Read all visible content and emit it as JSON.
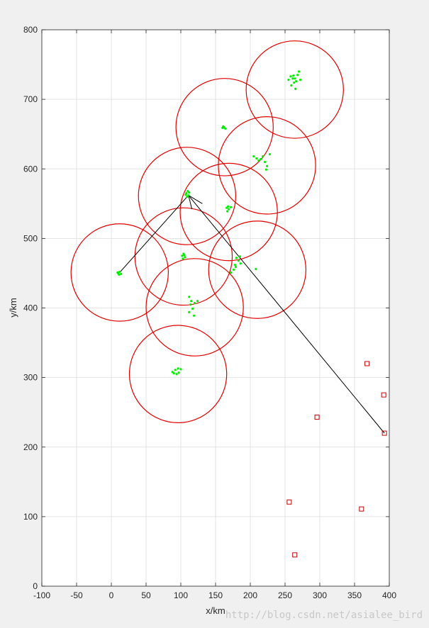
{
  "chart_data": {
    "type": "scatter",
    "title": "",
    "xlabel": "x/km",
    "ylabel": "y/km",
    "xlim": [
      -100,
      400
    ],
    "ylim": [
      0,
      800
    ],
    "xticks": [
      -100,
      -50,
      0,
      50,
      100,
      150,
      200,
      250,
      300,
      350,
      400
    ],
    "yticks": [
      0,
      100,
      200,
      300,
      400,
      500,
      600,
      700,
      800
    ],
    "grid": true,
    "legend": "none",
    "colors": {
      "circle": "#e00000",
      "points": "#00ee00",
      "squares": "#c00000",
      "path": "#000000",
      "grid": "#dcdcdc"
    },
    "circles": [
      {
        "cx": 264,
        "cy": 714,
        "r": 70
      },
      {
        "cx": 163,
        "cy": 660,
        "r": 70
      },
      {
        "cx": 224,
        "cy": 605,
        "r": 70
      },
      {
        "cx": 109,
        "cy": 561,
        "r": 70
      },
      {
        "cx": 169,
        "cy": 538,
        "r": 70
      },
      {
        "cx": 12,
        "cy": 451,
        "r": 70
      },
      {
        "cx": 104,
        "cy": 474,
        "r": 70
      },
      {
        "cx": 210,
        "cy": 455,
        "r": 70
      },
      {
        "cx": 120,
        "cy": 401,
        "r": 70
      },
      {
        "cx": 96,
        "cy": 305,
        "r": 70
      }
    ],
    "green_points": [
      [
        255,
        728
      ],
      [
        258,
        733
      ],
      [
        261,
        730
      ],
      [
        262,
        734
      ],
      [
        264,
        730
      ],
      [
        266,
        726
      ],
      [
        268,
        735
      ],
      [
        270,
        740
      ],
      [
        259,
        720
      ],
      [
        265,
        715
      ],
      [
        272,
        728
      ],
      [
        263,
        724
      ],
      [
        160,
        659
      ],
      [
        162,
        660
      ],
      [
        164,
        658
      ],
      [
        161,
        661
      ],
      [
        205,
        618
      ],
      [
        209,
        615
      ],
      [
        212,
        612
      ],
      [
        218,
        618
      ],
      [
        221,
        610
      ],
      [
        224,
        604
      ],
      [
        223,
        599
      ],
      [
        228,
        621
      ],
      [
        215,
        614
      ],
      [
        108,
        565
      ],
      [
        110,
        568
      ],
      [
        111,
        562
      ],
      [
        109,
        560
      ],
      [
        107,
        563
      ],
      [
        112,
        566
      ],
      [
        166,
        544
      ],
      [
        169,
        542
      ],
      [
        172,
        545
      ],
      [
        167,
        539
      ],
      [
        168,
        546
      ],
      [
        10,
        450
      ],
      [
        12,
        452
      ],
      [
        14,
        449
      ],
      [
        11,
        448
      ],
      [
        9,
        451
      ],
      [
        102,
        475
      ],
      [
        104,
        478
      ],
      [
        106,
        473
      ],
      [
        103,
        471
      ],
      [
        105,
        476
      ],
      [
        180,
        472
      ],
      [
        183,
        468
      ],
      [
        186,
        464
      ],
      [
        179,
        459
      ],
      [
        176,
        455
      ],
      [
        172,
        451
      ],
      [
        185,
        474
      ],
      [
        208,
        456
      ],
      [
        178,
        462
      ],
      [
        112,
        416
      ],
      [
        115,
        410
      ],
      [
        120,
        407
      ],
      [
        124,
        410
      ],
      [
        112,
        394
      ],
      [
        117,
        399
      ],
      [
        119,
        389
      ],
      [
        114,
        405
      ],
      [
        88,
        308
      ],
      [
        92,
        311
      ],
      [
        96,
        313
      ],
      [
        100,
        312
      ],
      [
        94,
        305
      ],
      [
        90,
        306
      ],
      [
        97,
        307
      ]
    ],
    "squares": [
      [
        368,
        320
      ],
      [
        392,
        275
      ],
      [
        296,
        243
      ],
      [
        393,
        220
      ],
      [
        256,
        121
      ],
      [
        360,
        111
      ],
      [
        264,
        45
      ]
    ],
    "path_lines": [
      [
        [
          12,
          451
        ],
        [
          111,
          562
        ]
      ],
      [
        [
          111,
          562
        ],
        [
          393,
          220
        ]
      ],
      [
        [
          111,
          562
        ],
        [
          131,
          550
        ]
      ],
      [
        [
          111,
          562
        ],
        [
          116,
          542
        ]
      ]
    ]
  },
  "watermark": "http://blog.csdn.net/asialee_bird"
}
